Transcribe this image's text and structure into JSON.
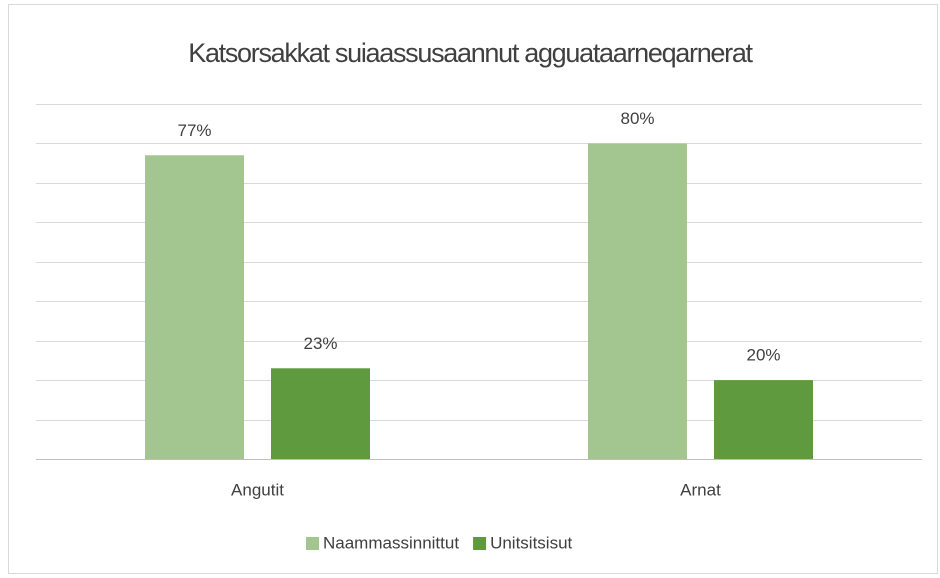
{
  "chart_data": {
    "type": "bar",
    "title": "Katsorsakkat suiaassusaannut agguataarneqarnerat",
    "categories": [
      "Angutit",
      "Arnat"
    ],
    "series": [
      {
        "name": "Naammassinnittut",
        "color": "#a3c58f",
        "values": [
          77,
          80
        ],
        "value_labels": [
          "77%",
          "80%"
        ]
      },
      {
        "name": "Unitsitsisut",
        "color": "#5f9a3e",
        "values": [
          23,
          20
        ],
        "value_labels": [
          "23%",
          "20%"
        ]
      }
    ],
    "ylim": [
      0,
      90
    ],
    "yticks": [
      0,
      10,
      20,
      30,
      40,
      50,
      60,
      70,
      80,
      90
    ],
    "grid": true,
    "legend": "bottom"
  }
}
